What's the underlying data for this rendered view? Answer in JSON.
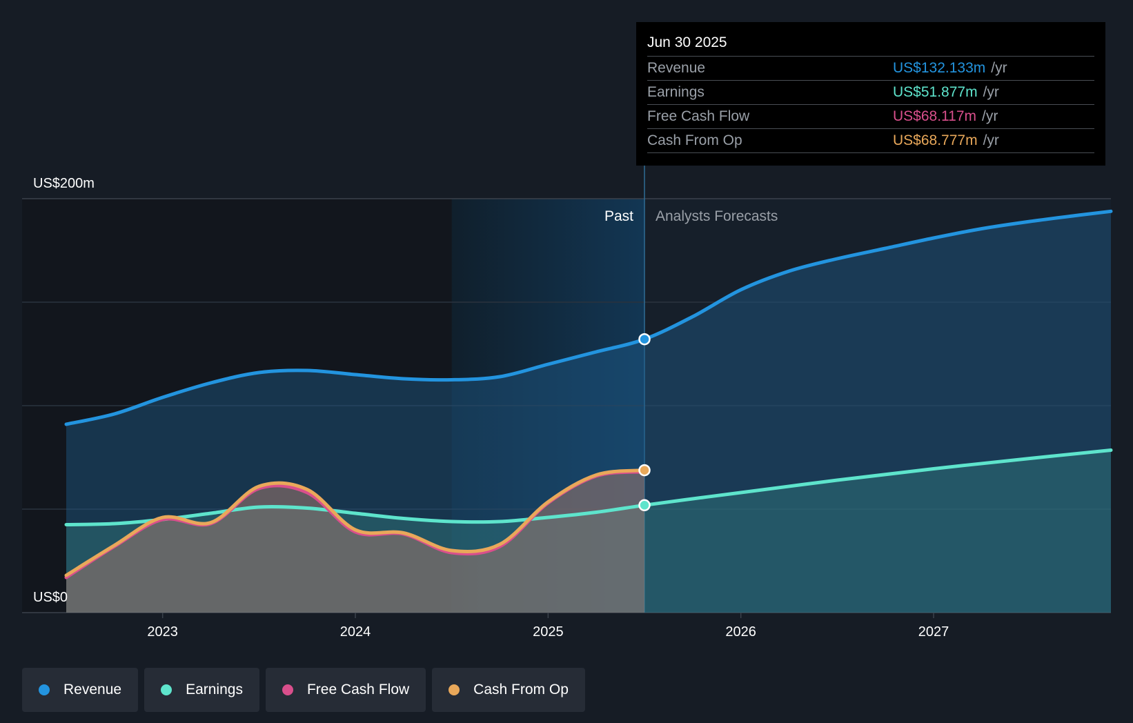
{
  "chart_data": {
    "type": "area",
    "x_domain": [
      2022.5,
      2027.92
    ],
    "y_domain": [
      0,
      200
    ],
    "y_labels": {
      "top": "US$200m",
      "bottom": "US$0"
    },
    "x_ticks": [
      {
        "value": 2023.0,
        "label": "2023"
      },
      {
        "value": 2024.0,
        "label": "2024"
      },
      {
        "value": 2025.0,
        "label": "2025"
      },
      {
        "value": 2026.0,
        "label": "2026"
      },
      {
        "value": 2027.0,
        "label": "2027"
      }
    ],
    "gridlines": [
      50,
      100,
      150,
      200
    ],
    "past_start": 2024.5,
    "divider_x": 2025.5,
    "past_label": "Past",
    "forecast_label": "Analysts Forecasts",
    "series": [
      {
        "name": "Revenue",
        "color": "#2394df",
        "x": [
          2022.5,
          2022.75,
          2023.0,
          2023.25,
          2023.5,
          2023.75,
          2024.0,
          2024.25,
          2024.5,
          2024.75,
          2025.0,
          2025.25,
          2025.5,
          2025.75,
          2026.0,
          2026.25,
          2026.5,
          2026.75,
          2027.0,
          2027.25,
          2027.5,
          2027.75,
          2027.92
        ],
        "y": [
          91,
          96,
          104,
          111,
          116,
          117,
          115,
          113,
          112.5,
          114,
          120,
          126,
          132.1,
          143,
          156,
          165,
          171,
          176,
          181,
          185.5,
          189,
          192,
          193.9
        ]
      },
      {
        "name": "Earnings",
        "color": "#5ee4cc",
        "x": [
          2022.5,
          2022.75,
          2023.0,
          2023.25,
          2023.5,
          2023.75,
          2024.0,
          2024.25,
          2024.5,
          2024.75,
          2025.0,
          2025.25,
          2025.5,
          2025.75,
          2026.0,
          2026.5,
          2027.0,
          2027.5,
          2027.92
        ],
        "y": [
          42.5,
          43,
          45,
          48,
          51,
          50.5,
          48,
          45.5,
          44,
          44,
          46,
          48.5,
          51.9,
          55,
          58,
          64,
          69.5,
          74.5,
          78.5
        ]
      },
      {
        "name": "Free Cash Flow",
        "color": "#d94f8c",
        "x": [
          2022.5,
          2022.75,
          2023.0,
          2023.25,
          2023.5,
          2023.75,
          2024.0,
          2024.25,
          2024.5,
          2024.75,
          2025.0,
          2025.25,
          2025.5
        ],
        "y": [
          17,
          32,
          45,
          43,
          60,
          58,
          39,
          38,
          29,
          32,
          53,
          66,
          68.1
        ]
      },
      {
        "name": "Cash From Op",
        "color": "#e9a85a",
        "x": [
          2022.5,
          2022.75,
          2023.0,
          2023.25,
          2023.5,
          2023.75,
          2024.0,
          2024.25,
          2024.5,
          2024.75,
          2025.0,
          2025.25,
          2025.5
        ],
        "y": [
          18,
          32.5,
          46,
          43.5,
          61,
          59.5,
          40,
          38.5,
          30,
          33,
          53.5,
          66.5,
          68.8
        ]
      }
    ],
    "markers": [
      {
        "series": "Revenue",
        "x": 2025.5,
        "y": 132.1,
        "color": "#2394df"
      },
      {
        "series": "Earnings",
        "x": 2025.5,
        "y": 51.9,
        "color": "#5ee4cc"
      },
      {
        "series": "Cash From Op",
        "x": 2025.5,
        "y": 68.8,
        "color": "#e9a85a"
      }
    ]
  },
  "tooltip": {
    "date": "Jun 30 2025",
    "unit": "/yr",
    "rows": [
      {
        "label": "Revenue",
        "value": "US$132.133m",
        "color": "#2394df"
      },
      {
        "label": "Earnings",
        "value": "US$51.877m",
        "color": "#5ee4cc"
      },
      {
        "label": "Free Cash Flow",
        "value": "US$68.117m",
        "color": "#d94f8c"
      },
      {
        "label": "Cash From Op",
        "value": "US$68.777m",
        "color": "#e9a85a"
      }
    ]
  },
  "legend": [
    {
      "label": "Revenue",
      "color": "#2394df"
    },
    {
      "label": "Earnings",
      "color": "#5ee4cc"
    },
    {
      "label": "Free Cash Flow",
      "color": "#d94f8c"
    },
    {
      "label": "Cash From Op",
      "color": "#e9a85a"
    }
  ]
}
